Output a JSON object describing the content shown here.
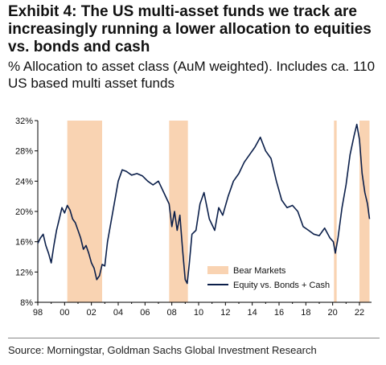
{
  "header": {
    "title": "Exhibit 4: The US multi-asset funds we track are increasingly running a lower allocation to equities vs. bonds and cash",
    "subtitle": "% Allocation to asset class (AuM weighted). Includes ca. 110 US based multi asset funds"
  },
  "footer": {
    "source": "Source: Morningstar, Goldman Sachs Global Investment Research"
  },
  "chart_data": {
    "type": "line",
    "title": "",
    "xlabel": "",
    "ylabel": "",
    "xlim": [
      1998.0,
      2022.9
    ],
    "ylim": [
      8,
      32
    ],
    "x_ticks": [
      1998,
      2000,
      2002,
      2004,
      2006,
      2008,
      2010,
      2012,
      2014,
      2016,
      2018,
      2020,
      2022
    ],
    "x_tick_labels": [
      "98",
      "00",
      "02",
      "04",
      "06",
      "08",
      "10",
      "12",
      "14",
      "16",
      "18",
      "20",
      "22"
    ],
    "y_ticks": [
      8,
      12,
      16,
      20,
      24,
      28,
      32
    ],
    "y_tick_labels": [
      "8%",
      "12%",
      "16%",
      "20%",
      "24%",
      "28%",
      "32%"
    ],
    "grid": false,
    "legend_position": "bottom-right",
    "colors": {
      "line": "#0b1f4a",
      "bear": "#f9d3b2"
    },
    "bear_markets": [
      {
        "start": 2000.2,
        "end": 2002.8
      },
      {
        "start": 2007.8,
        "end": 2009.2
      },
      {
        "start": 2020.1,
        "end": 2020.3
      },
      {
        "start": 2022.0,
        "end": 2022.75
      }
    ],
    "legend": [
      {
        "label": "Bear Markets",
        "kind": "area"
      },
      {
        "label": "Equity vs. Bonds + Cash",
        "kind": "line"
      }
    ],
    "series": [
      {
        "name": "Equity vs. Bonds + Cash",
        "x": [
          1998.0,
          1998.2,
          1998.4,
          1998.6,
          1998.8,
          1999.0,
          1999.2,
          1999.4,
          1999.6,
          1999.8,
          2000.0,
          2000.2,
          2000.4,
          2000.6,
          2000.8,
          2001.0,
          2001.2,
          2001.4,
          2001.6,
          2001.8,
          2002.0,
          2002.2,
          2002.4,
          2002.6,
          2002.8,
          2003.0,
          2003.2,
          2003.5,
          2003.8,
          2004.0,
          2004.3,
          2004.6,
          2005.0,
          2005.4,
          2005.8,
          2006.2,
          2006.6,
          2007.0,
          2007.4,
          2007.8,
          2008.0,
          2008.2,
          2008.4,
          2008.6,
          2008.8,
          2009.0,
          2009.15,
          2009.3,
          2009.5,
          2009.8,
          2010.1,
          2010.4,
          2010.8,
          2011.2,
          2011.5,
          2011.8,
          2012.2,
          2012.6,
          2013.0,
          2013.4,
          2013.8,
          2014.2,
          2014.6,
          2015.0,
          2015.4,
          2015.8,
          2016.2,
          2016.6,
          2017.0,
          2017.4,
          2017.8,
          2018.2,
          2018.6,
          2019.0,
          2019.4,
          2019.8,
          2020.05,
          2020.2,
          2020.4,
          2020.7,
          2021.0,
          2021.3,
          2021.6,
          2021.8,
          2022.0,
          2022.2,
          2022.4,
          2022.6,
          2022.75
        ],
        "values": [
          15.8,
          16.5,
          17.0,
          15.5,
          14.5,
          13.2,
          15.5,
          17.5,
          19.0,
          20.5,
          19.8,
          20.8,
          20.2,
          19.0,
          18.5,
          17.5,
          16.5,
          15.0,
          15.5,
          14.5,
          13.2,
          12.5,
          11.0,
          11.5,
          13.0,
          12.8,
          16.0,
          19.0,
          22.0,
          24.0,
          25.5,
          25.3,
          24.8,
          25.0,
          24.7,
          24.0,
          23.5,
          24.0,
          22.5,
          21.0,
          18.0,
          20.0,
          17.5,
          19.5,
          15.0,
          11.0,
          10.5,
          13.0,
          17.0,
          17.5,
          21.0,
          22.5,
          19.0,
          17.5,
          20.5,
          19.5,
          22.0,
          24.0,
          25.0,
          26.5,
          27.5,
          28.5,
          29.8,
          28.0,
          27.0,
          24.0,
          21.5,
          20.5,
          20.8,
          20.0,
          18.0,
          17.5,
          17.0,
          16.8,
          17.8,
          16.5,
          16.0,
          14.5,
          16.5,
          20.5,
          23.5,
          27.5,
          30.0,
          31.5,
          29.5,
          25.0,
          22.5,
          21.0,
          19.0
        ]
      }
    ]
  }
}
